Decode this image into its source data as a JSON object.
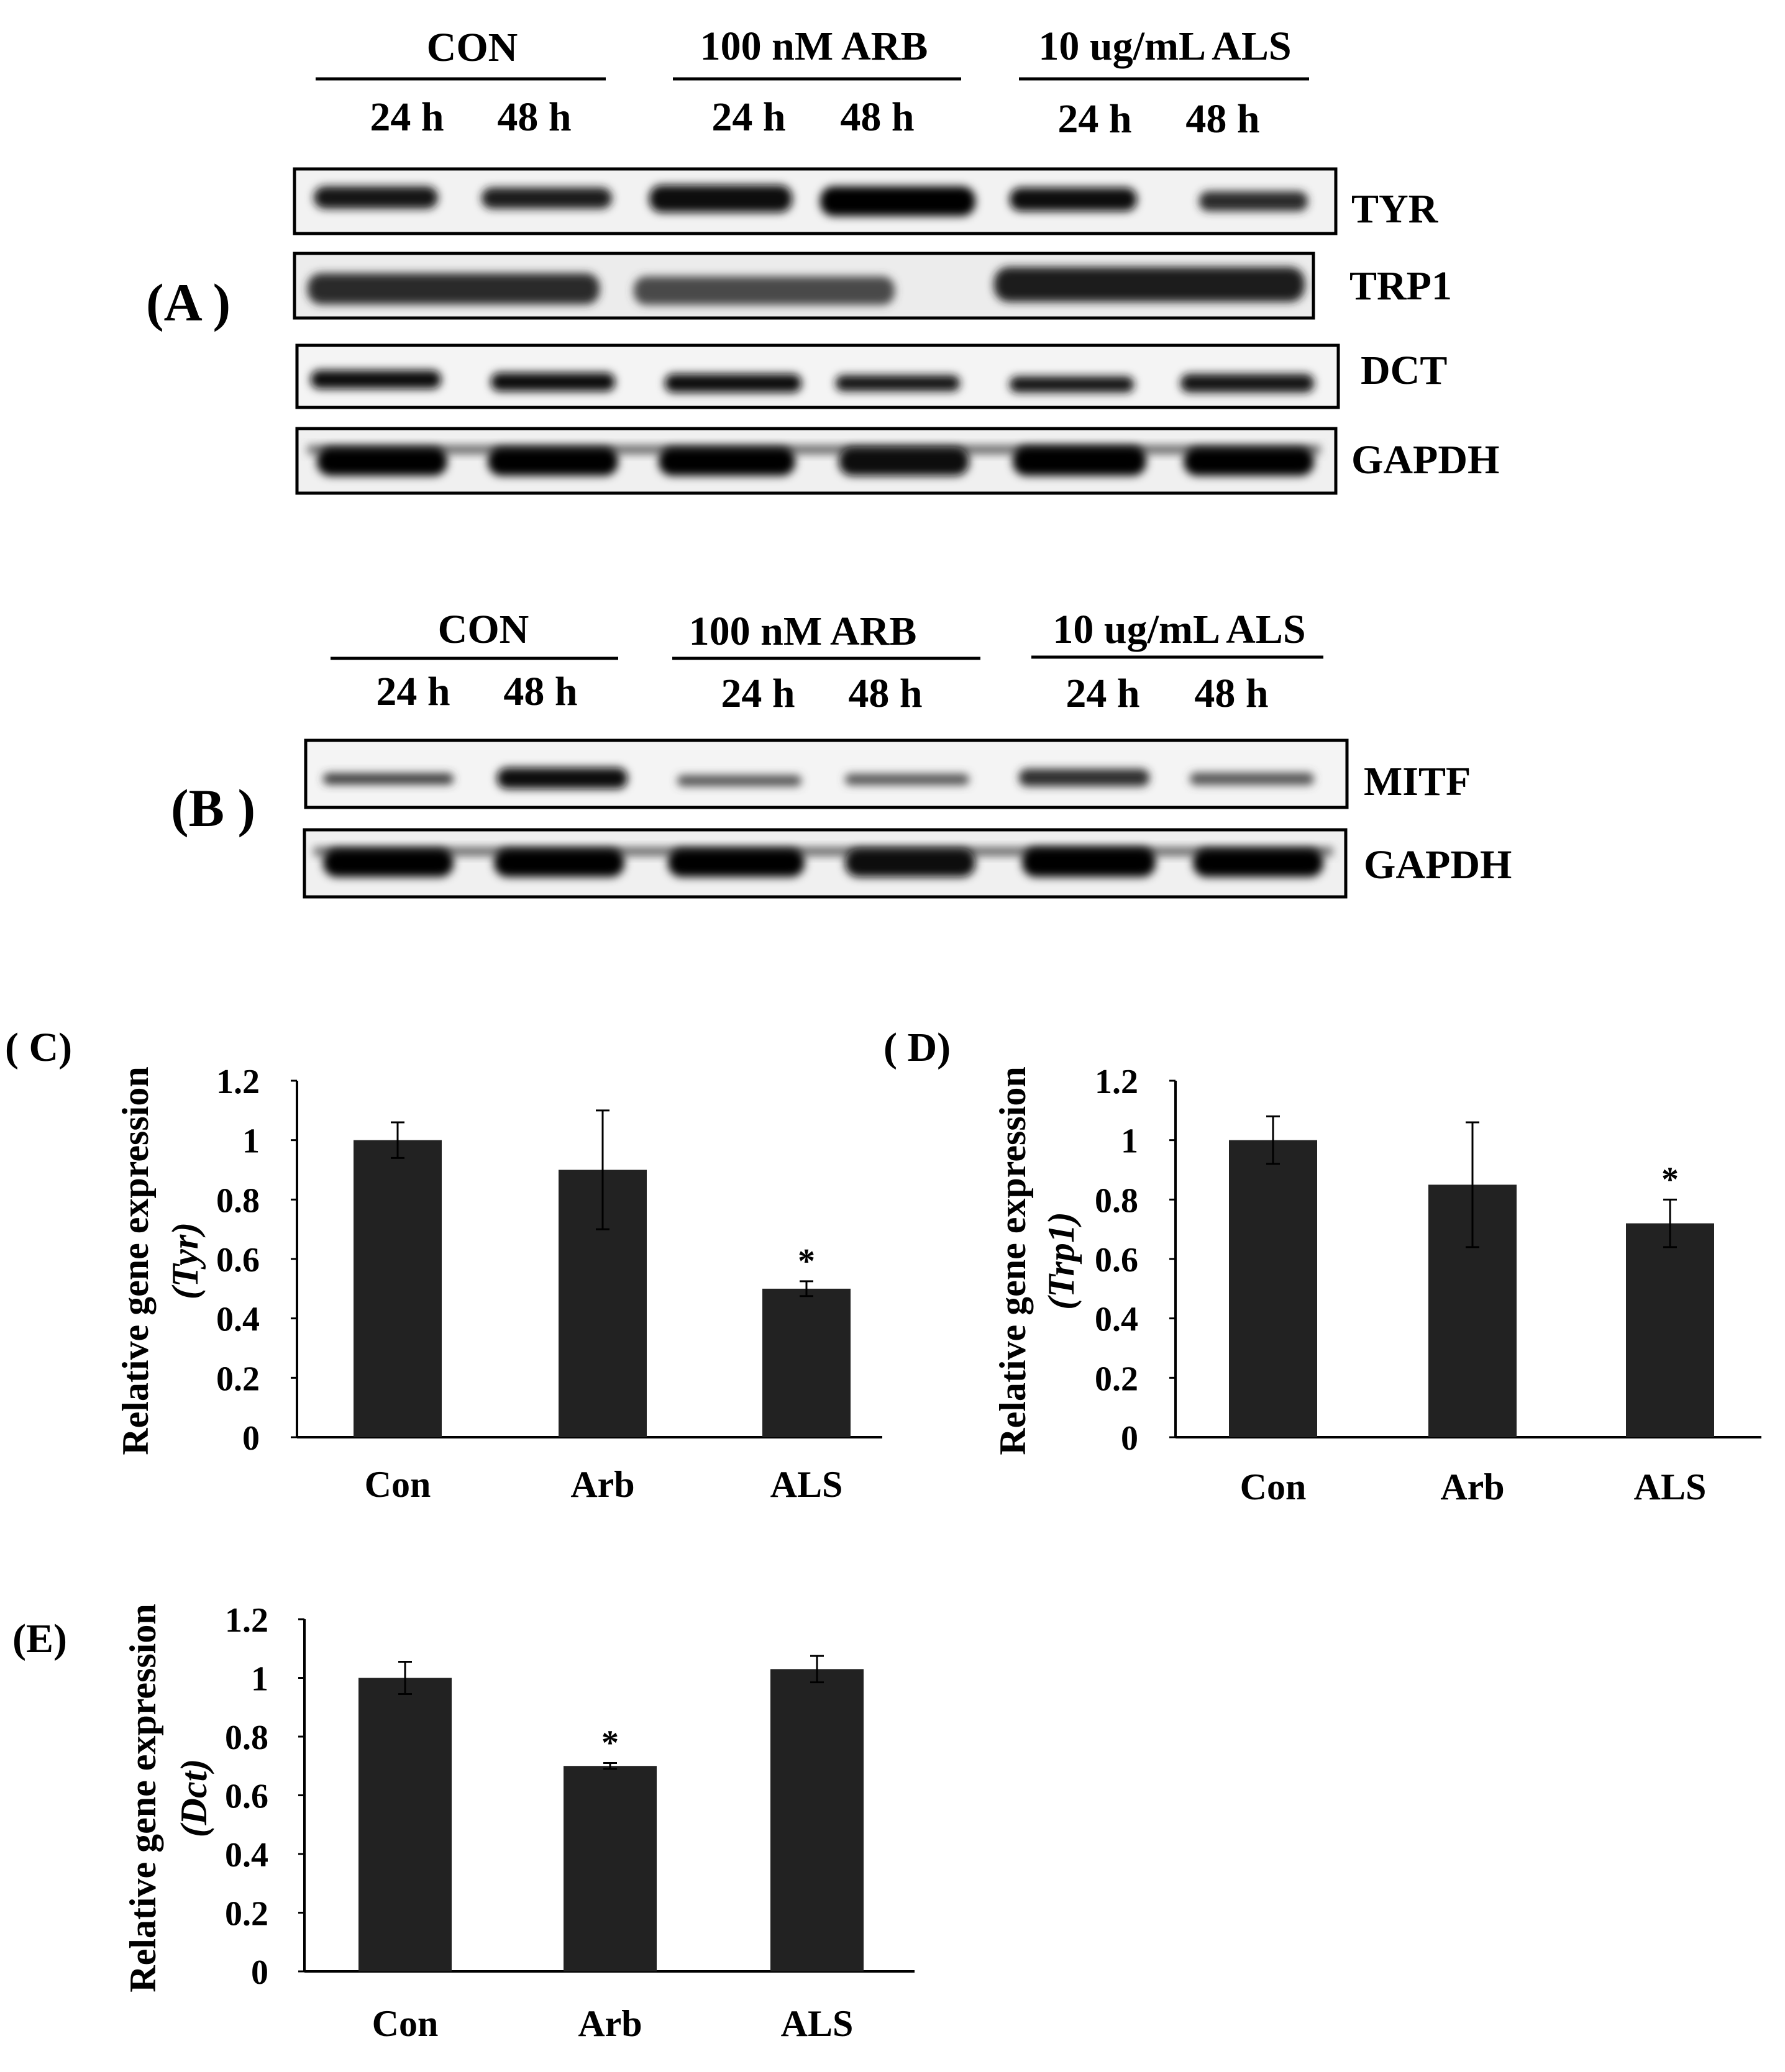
{
  "panel_A": {
    "label": "(A )",
    "groups": [
      "CON",
      "100 nM ARB",
      "10 ug/mL ALS"
    ],
    "times": [
      "24 h",
      "48 h",
      "24 h",
      "48 h",
      "24 h",
      "48 h"
    ],
    "blots": [
      "TYR",
      "TRP1",
      "DCT",
      "GAPDH"
    ]
  },
  "panel_B": {
    "label": "(B )",
    "groups": [
      "CON",
      "100 nM ARB",
      "10 ug/mL ALS"
    ],
    "times": [
      "24 h",
      "48 h",
      "24 h",
      "48 h",
      "24 h",
      "48 h"
    ],
    "blots": [
      "MITF",
      "GAPDH"
    ]
  },
  "chart_data": [
    {
      "panel_label": "( C)",
      "type": "bar",
      "categories": [
        "Con",
        "Arb",
        "ALS"
      ],
      "values": [
        1.0,
        0.9,
        0.5
      ],
      "errors": [
        0.06,
        0.2,
        0.025
      ],
      "significance": [
        "",
        "",
        "*"
      ],
      "ylabel": "Relative gene expression",
      "ylabel_gene": "(Tyr)",
      "ylim": [
        0,
        1.2
      ],
      "yticks": [
        "0",
        "0.2",
        "0.4",
        "0.6",
        "0.8",
        "1",
        "1.2"
      ],
      "bar_color": "#222222"
    },
    {
      "panel_label": "( D)",
      "type": "bar",
      "categories": [
        "Con",
        "Arb",
        "ALS"
      ],
      "values": [
        1.0,
        0.85,
        0.72
      ],
      "errors": [
        0.08,
        0.21,
        0.08
      ],
      "significance": [
        "",
        "",
        "*"
      ],
      "ylabel": "Relative gene expression",
      "ylabel_gene": "(Trp1)",
      "ylim": [
        0,
        1.2
      ],
      "yticks": [
        "0",
        "0.2",
        "0.4",
        "0.6",
        "0.8",
        "1",
        "1.2"
      ],
      "bar_color": "#222222"
    },
    {
      "panel_label": "(E)",
      "type": "bar",
      "categories": [
        "Con",
        "Arb",
        "ALS"
      ],
      "values": [
        1.0,
        0.7,
        1.03
      ],
      "errors": [
        0.055,
        0.01,
        0.045
      ],
      "significance": [
        "",
        "*",
        ""
      ],
      "ylabel": "Relative gene expression",
      "ylabel_gene": "(Dct)",
      "ylim": [
        0,
        1.2
      ],
      "yticks": [
        "0",
        "0.2",
        "0.4",
        "0.6",
        "0.8",
        "1",
        "1.2"
      ],
      "bar_color": "#222222"
    }
  ]
}
